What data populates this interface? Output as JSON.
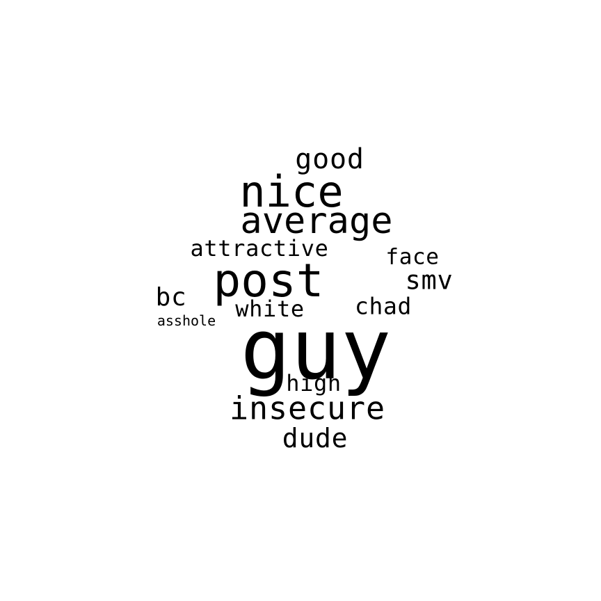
{
  "words": {
    "guy": "guy",
    "post": "post",
    "nice": "nice",
    "average": "average",
    "insecure": "insecure",
    "dude": "dude",
    "good": "good",
    "smv": "smv",
    "attractive": "attractive",
    "chad": "chad",
    "face": "face",
    "white": "white",
    "high": "high",
    "bc": "bc",
    "asshole": "asshole"
  },
  "colors": {
    "text": "#000000",
    "background": "#ffffff"
  }
}
